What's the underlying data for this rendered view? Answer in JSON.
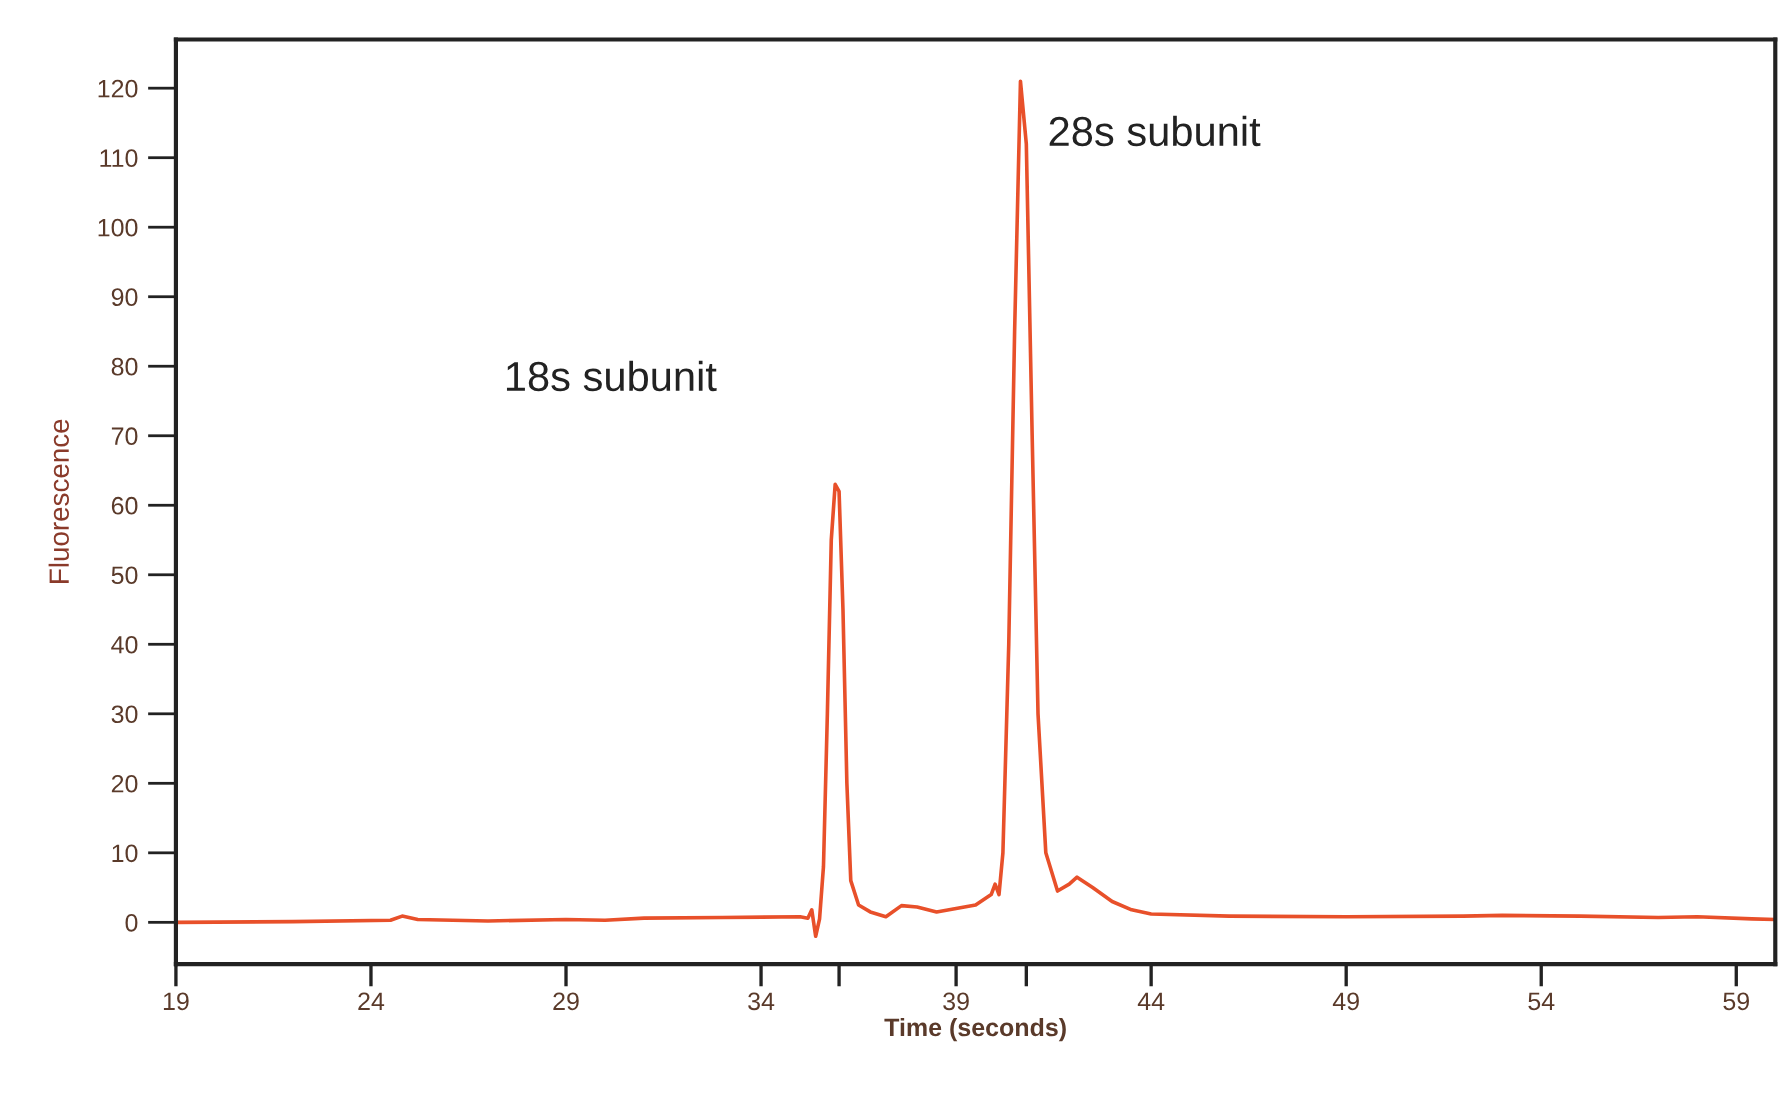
{
  "chart_data": {
    "type": "line",
    "xlabel": "Time (seconds)",
    "ylabel": "Fluorescence",
    "annotations": [
      "18s subunit",
      "28s subunit"
    ],
    "x": [
      19,
      22,
      24.5,
      24.8,
      25.2,
      27,
      29,
      30,
      31,
      33,
      35,
      35.2,
      35.3,
      35.4,
      35.5,
      35.6,
      35.7,
      35.8,
      35.9,
      36.0,
      36.1,
      36.2,
      36.3,
      36.5,
      36.8,
      37.2,
      37.6,
      38.0,
      38.5,
      39.0,
      39.5,
      39.9,
      40.0,
      40.1,
      40.2,
      40.35,
      40.5,
      40.65,
      40.8,
      40.95,
      41.1,
      41.3,
      41.6,
      41.9,
      42.1,
      42.5,
      43,
      43.5,
      44,
      46,
      49,
      52,
      53,
      55,
      57,
      58,
      59.4,
      60
    ],
    "series": [
      {
        "color": "#e8502a",
        "values": [
          0,
          0.1,
          0.3,
          0.9,
          0.4,
          0.2,
          0.4,
          0.3,
          0.6,
          0.7,
          0.8,
          0.6,
          1.8,
          -2,
          0.5,
          8,
          30,
          55,
          63,
          62,
          45,
          20,
          6,
          2.5,
          1.5,
          0.8,
          2.4,
          2.2,
          1.5,
          2,
          2.5,
          4,
          5.5,
          4,
          10,
          40,
          85,
          121,
          112,
          70,
          30,
          10,
          4.5,
          5.5,
          6.5,
          5,
          3,
          1.8,
          1.2,
          0.9,
          0.8,
          0.9,
          1.0,
          0.9,
          0.7,
          0.8,
          0.5,
          0.4
        ]
      }
    ],
    "xlim": [
      19,
      60
    ],
    "ylim": [
      -6,
      127
    ],
    "xticks": [
      19,
      24,
      29,
      34,
      {
        "value": 36,
        "label": null
      },
      39,
      {
        "value": 40.8,
        "label": null
      },
      44,
      49,
      54,
      59
    ],
    "yticks": [
      0,
      10,
      20,
      30,
      40,
      50,
      60,
      70,
      80,
      90,
      100,
      110,
      120
    ],
    "grid": false,
    "legend": false,
    "marker": "none",
    "line_style": "solid"
  }
}
